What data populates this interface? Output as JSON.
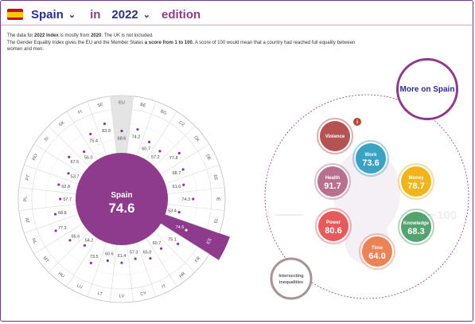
{
  "header": {
    "country": "Spain",
    "in_label": "in",
    "year": "2022",
    "edition_label": "edition"
  },
  "description": {
    "p1": "The data for ",
    "p1_bold": "2022 Index",
    "p2": " is mostly from ",
    "p2_bold": "2020",
    "p3": ". The UK is not included.",
    "p4": "The Gender Equality Index gives the EU and the Member States ",
    "p4_bold": "a score from 1 to 100",
    "p5": ". A score of 100 would mean that a country had reached full equality between women and men."
  },
  "wheel": {
    "center_label": "Spain",
    "center_value": "74.6",
    "countries": [
      {
        "code": "EU",
        "value": 68.6,
        "highlight": "eu"
      },
      {
        "code": "BE",
        "value": 74.2
      },
      {
        "code": "BG",
        "value": 60.7
      },
      {
        "code": "CZ",
        "value": 57.2
      },
      {
        "code": "DK",
        "value": 77.8
      },
      {
        "code": "DE",
        "value": 68.7
      },
      {
        "code": "EE",
        "value": 61.0
      },
      {
        "code": "IE",
        "value": 74.3
      },
      {
        "code": "EL",
        "value": 53.4
      },
      {
        "code": "ES",
        "value": 74.6,
        "highlight": "selected"
      },
      {
        "code": "FR",
        "value": 75.1
      },
      {
        "code": "HR",
        "value": 60.7
      },
      {
        "code": "IT",
        "value": 65.0
      },
      {
        "code": "CY",
        "value": 57.3
      },
      {
        "code": "LV",
        "value": 61.4
      },
      {
        "code": "LT",
        "value": 60.6
      },
      {
        "code": "LU",
        "value": 73.5
      },
      {
        "code": "HU",
        "value": 54.2
      },
      {
        "code": "MT",
        "value": 65.6
      },
      {
        "code": "NL",
        "value": 77.3
      },
      {
        "code": "AT",
        "value": 68.8
      },
      {
        "code": "PL",
        "value": 57.7
      },
      {
        "code": "PT",
        "value": 62.8
      },
      {
        "code": "RO",
        "value": 53.7
      },
      {
        "code": "SI",
        "value": 67.5
      },
      {
        "code": "SK",
        "value": 56.0
      },
      {
        "code": "FI",
        "value": 75.4
      },
      {
        "code": "SE",
        "value": 83.9
      }
    ]
  },
  "domains": {
    "scale_min": "1",
    "scale_max": "100",
    "info": "i",
    "items": [
      {
        "name": "Violence",
        "value": "",
        "color": "#b55252"
      },
      {
        "name": "Work",
        "value": "73.6",
        "color": "#3aa3c4"
      },
      {
        "name": "Money",
        "value": "78.7",
        "color": "#f0b41e"
      },
      {
        "name": "Knowledge",
        "value": "68.3",
        "color": "#55a36e"
      },
      {
        "name": "Time",
        "value": "64.0",
        "color": "#ea8356"
      },
      {
        "name": "Power",
        "value": "80.6",
        "color": "#e55a5a"
      },
      {
        "name": "Health",
        "value": "91.7",
        "color": "#b8708f"
      }
    ],
    "intersecting": "Intersecting inequalities"
  },
  "more_button": "More on Spain",
  "colors": {
    "accent": "#8e3b8e",
    "navy": "#2b2f86",
    "segment": "#f3eef4"
  }
}
